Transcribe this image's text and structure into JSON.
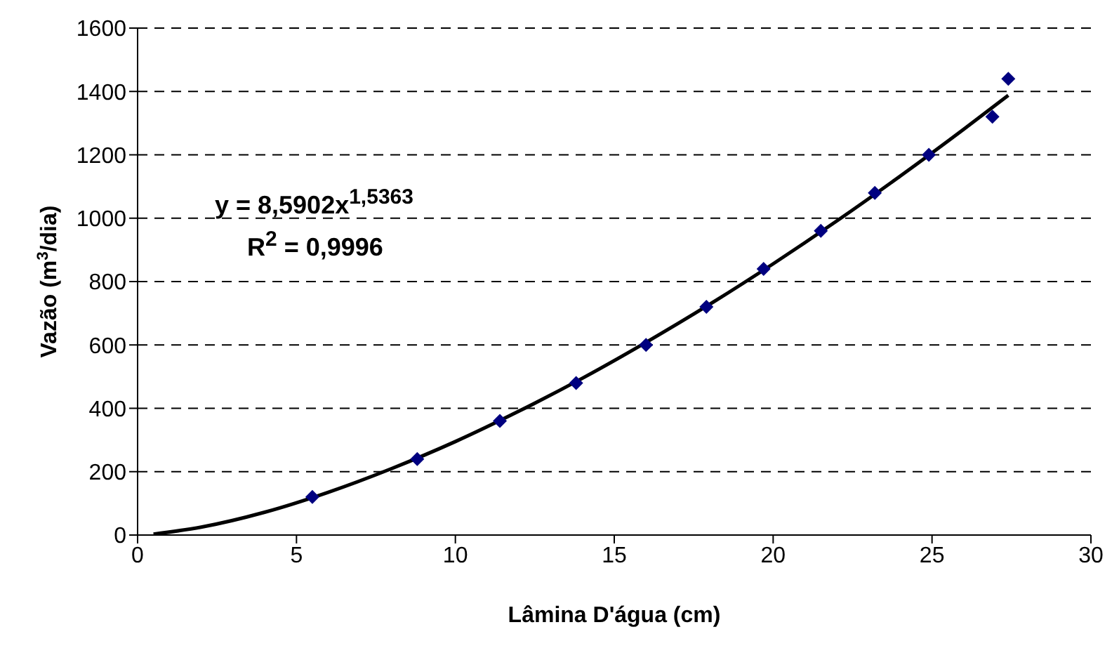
{
  "chart_data": {
    "type": "scatter",
    "xlabel": "Lâmina D'água (cm)",
    "ylabel": "Vazão (m$^{3}$/dia)",
    "annotations": [
      "y = 8,5902x$^{1,5363}$",
      "R$^{2}$ = 0,9996"
    ],
    "x": [
      5.5,
      8.8,
      11.4,
      13.8,
      16.0,
      17.9,
      19.7,
      21.5,
      23.2,
      24.9,
      26.9,
      27.4
    ],
    "series": [
      {
        "color": "#000080",
        "marker": "diamond",
        "values": [
          120,
          240,
          360,
          480,
          600,
          720,
          840,
          960,
          1080,
          1200,
          1320,
          1440
        ]
      },
      {
        "type": "line",
        "color": "#000000",
        "marker": "none",
        "x": [
          0.5,
          2,
          4,
          6,
          8,
          10,
          12,
          14,
          16,
          18,
          20,
          22,
          24,
          26,
          27.4
        ],
        "values": [
          3,
          25,
          72,
          135,
          210,
          295,
          391,
          495,
          608,
          728,
          856,
          991,
          1133,
          1281,
          1388
        ]
      }
    ],
    "xlim": [
      0,
      30
    ],
    "xticks": [
      0,
      5,
      10,
      15,
      20,
      25,
      30
    ],
    "ylim": [
      0,
      1600
    ],
    "yticks": [
      0,
      200,
      400,
      600,
      800,
      1000,
      1200,
      1400,
      1600
    ],
    "grid": "y",
    "legend": false
  }
}
